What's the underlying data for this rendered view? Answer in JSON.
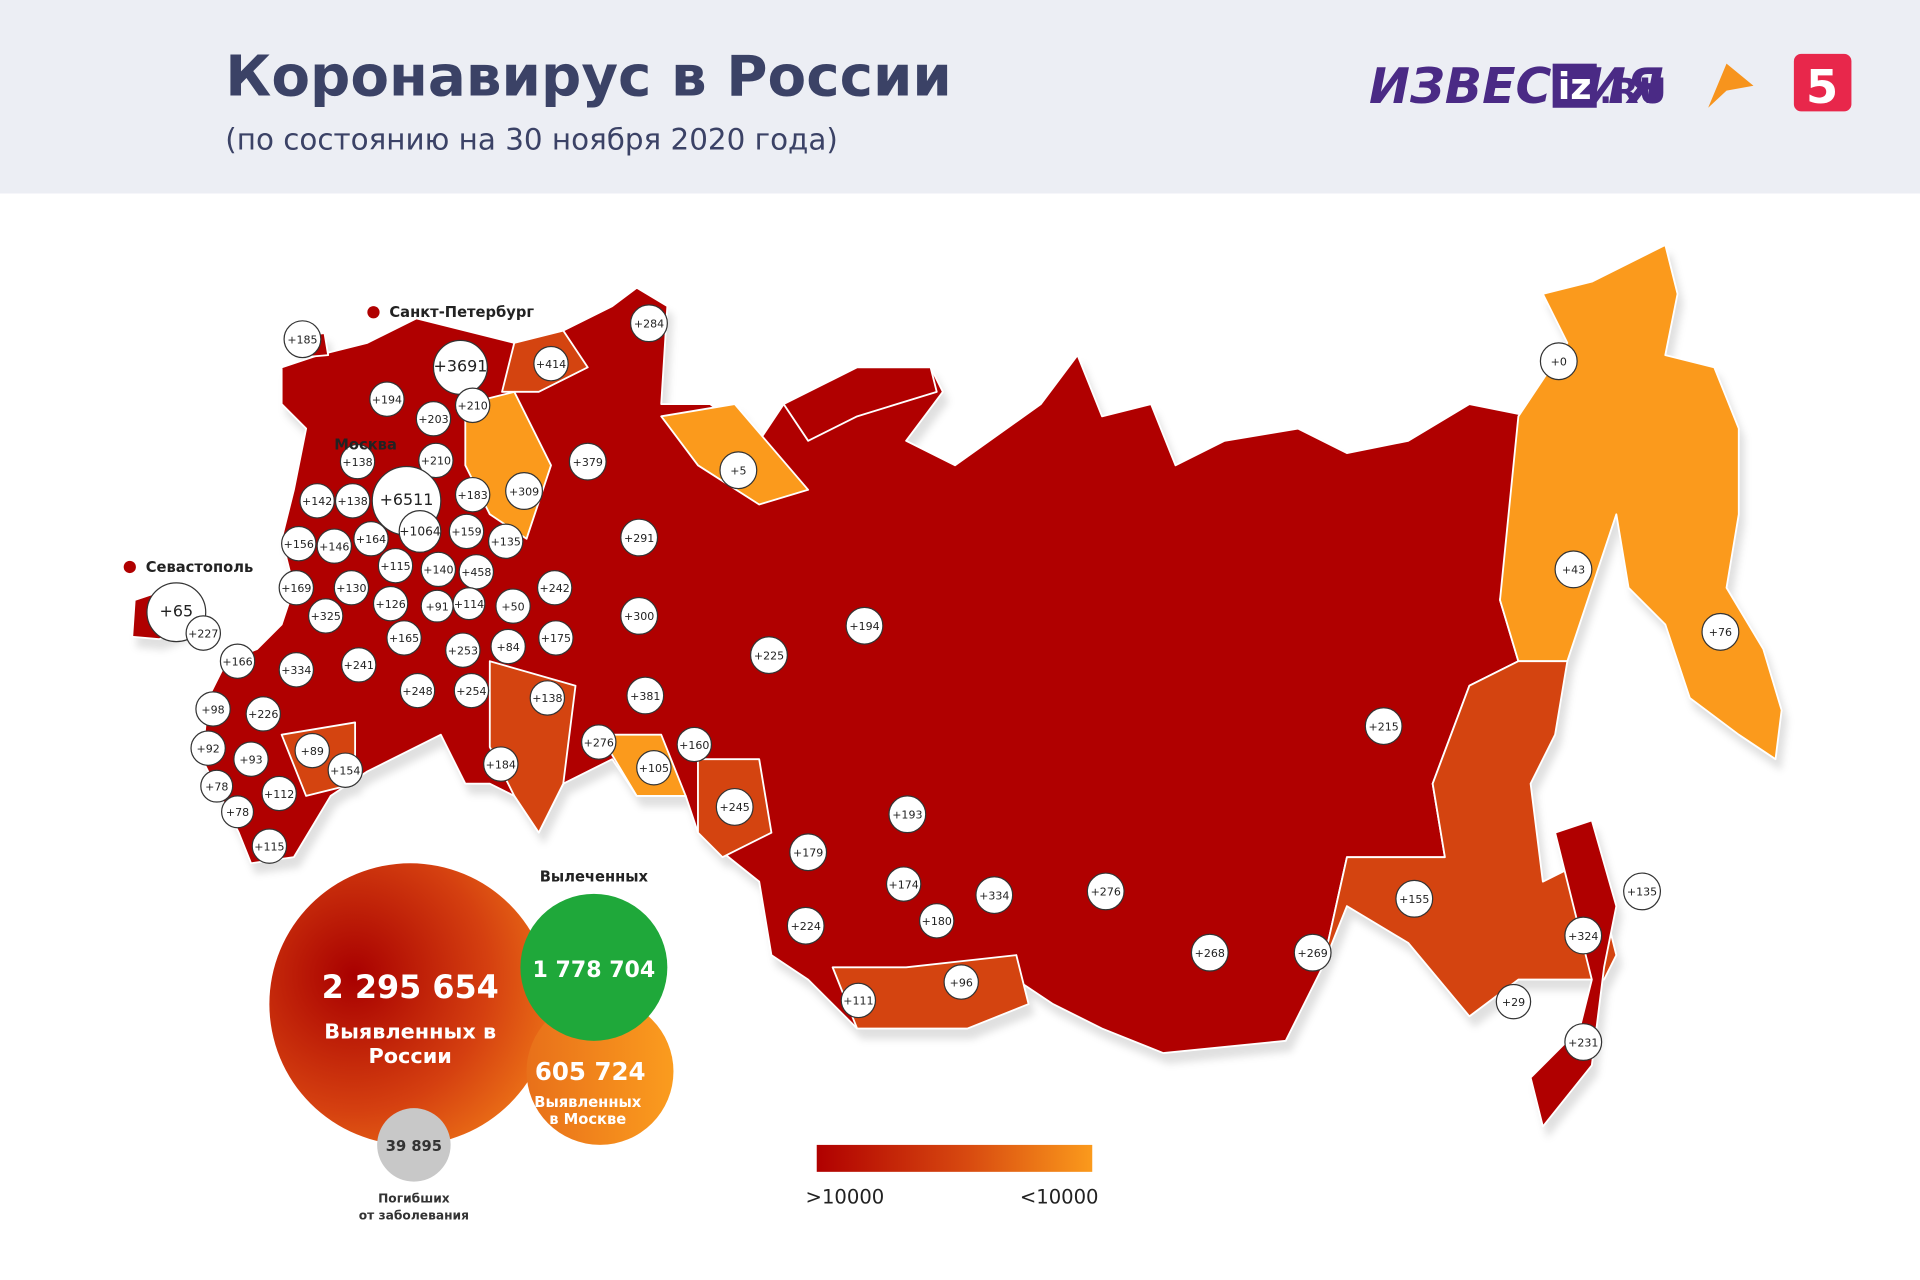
{
  "header": {
    "title": "Коронавирус в России",
    "subtitle": "(по состоянию на 30 ноября 2020 года)"
  },
  "logos": {
    "izvestia": "ИЗВЕСТИЯ",
    "iz": "iz",
    "ru": ".RU",
    "channel5": "5"
  },
  "cities": [
    "Санкт-Петербург",
    "Москва",
    "Севастополь"
  ],
  "regions": [
    "+185",
    "+3691",
    "+414",
    "+284",
    "+194",
    "+210",
    "+203",
    "+138",
    "+210",
    "+6511",
    "+142",
    "+138",
    "+183",
    "+309",
    "+379",
    "+5",
    "+156",
    "+146",
    "+164",
    "+1064",
    "+159",
    "+135",
    "+291",
    "+115",
    "+140",
    "+458",
    "+169",
    "+130",
    "+126",
    "+91",
    "+114",
    "+50",
    "+242",
    "+300",
    "+65",
    "+227",
    "+325",
    "+165",
    "+253",
    "+84",
    "+175",
    "+225",
    "+194",
    "+166",
    "+334",
    "+241",
    "+248",
    "+254",
    "+138",
    "+381",
    "+98",
    "+226",
    "+89",
    "+92",
    "+93",
    "+154",
    "+276",
    "+105",
    "+160",
    "+184",
    "+78",
    "+112",
    "+78",
    "+245",
    "+193",
    "+115",
    "+179",
    "+174",
    "+180",
    "+224",
    "+334",
    "+276",
    "+215",
    "+0",
    "+43",
    "+76",
    "+135",
    "+155",
    "+324",
    "+268",
    "+269",
    "+96",
    "+111",
    "+29",
    "+231"
  ],
  "summary": {
    "cases": "2 295 654",
    "cases_label": [
      "Выявленных в",
      "России"
    ],
    "recovered_label": "Вылеченных",
    "recovered": "1 778 704",
    "moscow": "605 724",
    "moscow_label": [
      "Выявленных",
      "в Москве"
    ],
    "deaths": "39 895",
    "deaths_label": [
      "Погибших",
      "от заболевания"
    ]
  },
  "legend": {
    "high": ">10000",
    "low": "<10000"
  }
}
